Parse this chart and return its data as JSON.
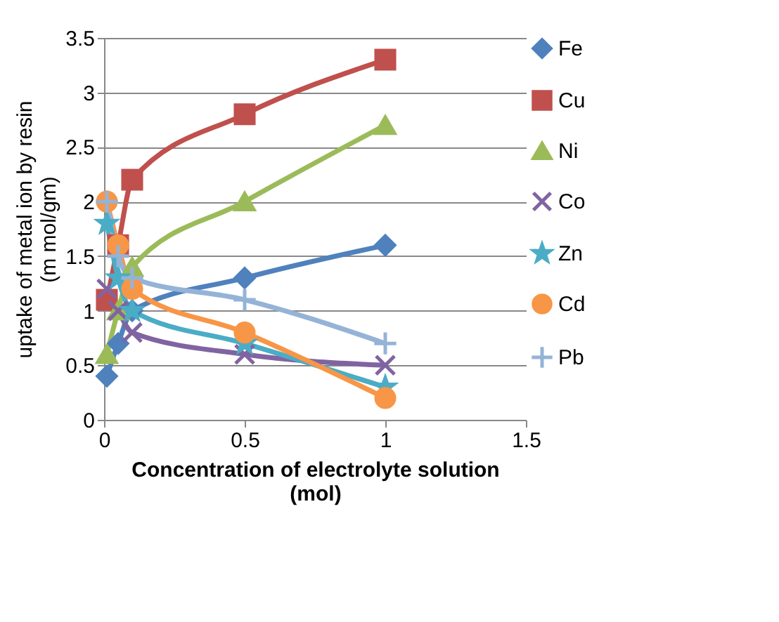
{
  "chart_data": {
    "type": "line",
    "xlabel": "Concentration of electrolyte solution\n(mol)",
    "ylabel": "uptake of metal ion by resin\n(m mol/gm)",
    "x": [
      0.01,
      0.05,
      0.1,
      0.5,
      1
    ],
    "series": [
      {
        "name": "Fe",
        "color": "#4f81bd",
        "marker": "diamond",
        "values": [
          0.4,
          0.7,
          1.0,
          1.3,
          1.6
        ]
      },
      {
        "name": "Cu",
        "color": "#c0504d",
        "marker": "square",
        "values": [
          1.1,
          1.6,
          2.2,
          2.8,
          3.3
        ]
      },
      {
        "name": " Ni",
        "color": "#9bbb59",
        "marker": "triangle",
        "values": [
          0.6,
          1.0,
          1.4,
          2.0,
          2.7
        ]
      },
      {
        "name": "Co",
        "color": "#8064a2",
        "marker": "cross",
        "values": [
          1.2,
          1.0,
          0.8,
          0.6,
          0.5
        ]
      },
      {
        "name": "Zn",
        "color": "#4bacc6",
        "marker": "star",
        "values": [
          1.8,
          1.3,
          1.0,
          0.7,
          0.3
        ]
      },
      {
        "name": "Cd",
        "color": "#f79646",
        "marker": "circle",
        "values": [
          2.0,
          1.6,
          1.2,
          0.8,
          0.2
        ]
      },
      {
        "name": "Pb",
        "color": "#95b3d7",
        "marker": "plus",
        "values": [
          2.0,
          1.5,
          1.3,
          1.1,
          0.7
        ]
      }
    ],
    "xlim": [
      0,
      1.5
    ],
    "xticks": [
      0,
      0.5,
      1,
      1.5
    ],
    "ylim": [
      0,
      3.5
    ],
    "yticks": [
      0,
      0.5,
      1,
      1.5,
      2,
      2.5,
      3,
      3.5
    ],
    "grid": "y",
    "legend": "right"
  }
}
